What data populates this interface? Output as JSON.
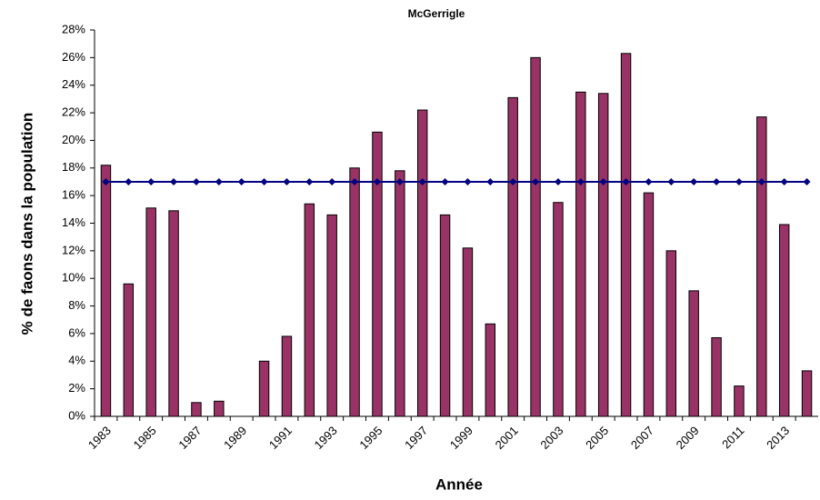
{
  "chart_data": {
    "type": "bar",
    "title": "McGerrigle",
    "x_label": "Année",
    "y_label": "% de faons dans la population",
    "categories": [
      "1983",
      null,
      "1985",
      null,
      "1987",
      null,
      "1989",
      null,
      "1991",
      null,
      "1993",
      null,
      "1995",
      null,
      "1997",
      null,
      "1999",
      null,
      "2001",
      null,
      "2003",
      null,
      "2005",
      null,
      "2007",
      null,
      "2009",
      null,
      "2011",
      null,
      "2013",
      null
    ],
    "series": [
      {
        "type": "bar",
        "color": "#993366",
        "values": [
          18.2,
          9.6,
          15.1,
          14.9,
          1.0,
          1.1,
          0,
          4.0,
          5.8,
          15.4,
          14.6,
          18.0,
          20.6,
          17.8,
          22.2,
          14.6,
          12.2,
          6.7,
          23.1,
          26.0,
          15.5,
          23.5,
          23.4,
          26.3,
          16.2,
          12.0,
          9.1,
          5.7,
          2.2,
          21.7,
          13.9,
          3.3
        ]
      },
      {
        "type": "line",
        "color": "#000080",
        "values": [
          17,
          17,
          17,
          17,
          17,
          17,
          17,
          17,
          17,
          17,
          17,
          17,
          17,
          17,
          17,
          17,
          17,
          17,
          17,
          17,
          17,
          17,
          17,
          17,
          17,
          17,
          17,
          17,
          17,
          17,
          17,
          17
        ]
      }
    ],
    "ylim": [
      0,
      28
    ],
    "yticks": [
      {
        "value": 0,
        "label": "0%"
      },
      {
        "value": 2,
        "label": "2%"
      },
      {
        "value": 4,
        "label": "4%"
      },
      {
        "value": 6,
        "label": "6%"
      },
      {
        "value": 8,
        "label": "8%"
      },
      {
        "value": 10,
        "label": "10%"
      },
      {
        "value": 12,
        "label": "12%"
      },
      {
        "value": 14,
        "label": "14%"
      },
      {
        "value": 16,
        "label": "16%"
      },
      {
        "value": 18,
        "label": "18%"
      },
      {
        "value": 20,
        "label": "20%"
      },
      {
        "value": 22,
        "label": "22%"
      },
      {
        "value": 24,
        "label": "24%"
      },
      {
        "value": 26,
        "label": "26%"
      },
      {
        "value": 28,
        "label": "28%"
      }
    ],
    "grid": false
  }
}
